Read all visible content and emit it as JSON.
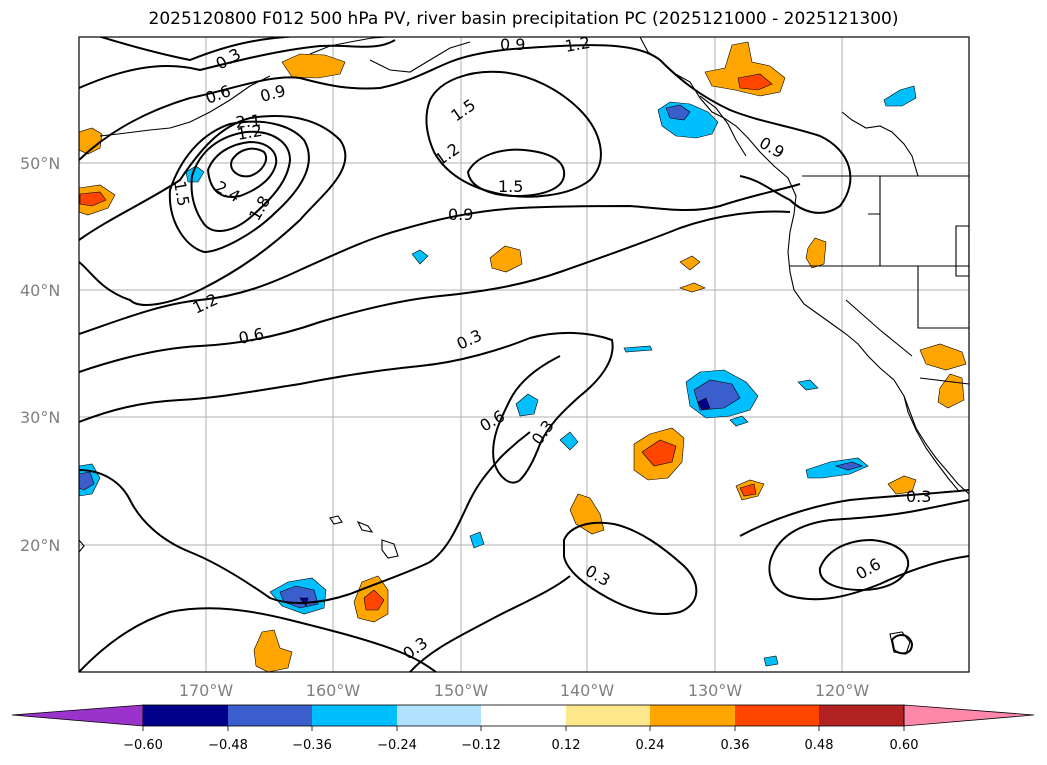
{
  "title": "2025120800 F012 500 hPa PV, river basin precipitation PC (2025121000 - 2025121300)",
  "map": {
    "projection": "PlateCarree",
    "lon_range": [
      -180,
      -110
    ],
    "lat_range": [
      10,
      60
    ],
    "gridlines": true,
    "lat_labels": [
      "50°N",
      "40°N",
      "30°N",
      "20°N"
    ],
    "lon_labels": [
      "170°W",
      "160°W",
      "150°W",
      "140°W",
      "130°W",
      "120°W"
    ],
    "contour_field": "500 hPa PV",
    "contour_color": "#000000",
    "contour_labels": [
      "0.3",
      "0.6",
      "0.9",
      "1.2",
      "1.5",
      "1.8",
      "2.1",
      "2.4",
      "0.3",
      "0.6",
      "1.2",
      "1.5",
      "1.5",
      "0.9",
      "1.2",
      "0.9",
      "1.2",
      "0.9",
      "0.6",
      "0.3",
      "0.6",
      "0.3",
      "0.3",
      "0.3",
      "0.6",
      "0.3",
      "0.3"
    ]
  },
  "colorbar": {
    "extend": "both",
    "colors": [
      "#9933cc",
      "#00008b",
      "#3a5fcd",
      "#00bfff",
      "#b0e2ff",
      "#ffffff",
      "#ffe88c",
      "#ffa500",
      "#ff4500",
      "#b22222",
      "#ff88aa"
    ],
    "tick_labels": [
      "−0.60",
      "−0.48",
      "−0.36",
      "−0.24",
      "−0.12",
      "0.12",
      "0.24",
      "0.36",
      "0.48",
      "0.60"
    ]
  }
}
